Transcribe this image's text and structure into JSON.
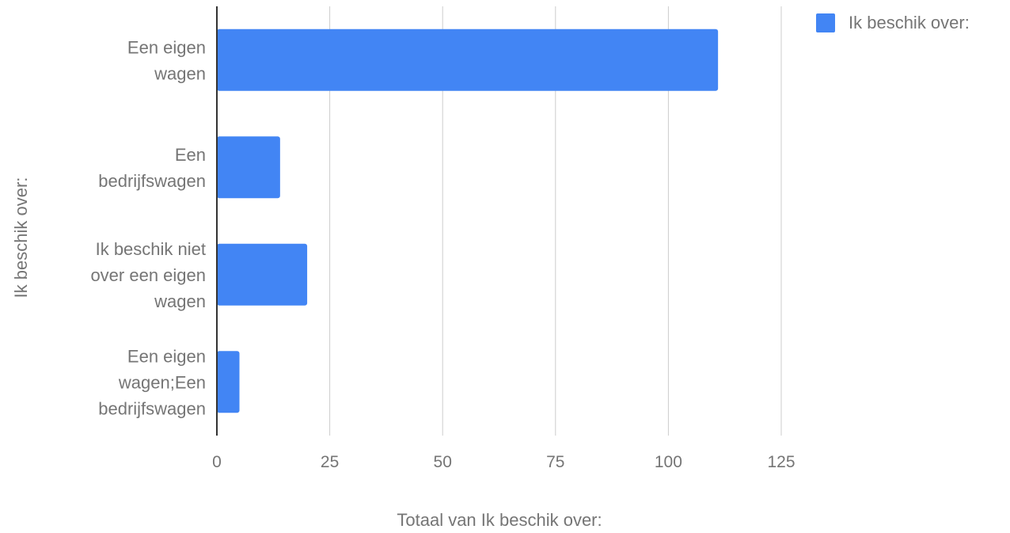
{
  "chart_data": {
    "type": "bar",
    "orientation": "horizontal",
    "categories": [
      [
        "Een eigen",
        "wagen"
      ],
      [
        "Een",
        "bedrijfswagen"
      ],
      [
        "Ik beschik niet",
        "over een eigen",
        "wagen"
      ],
      [
        "Een eigen",
        "wagen;Een",
        "bedrijfswagen"
      ]
    ],
    "series": [
      {
        "name": "Ik beschik over:",
        "values": [
          111,
          14,
          20,
          5
        ],
        "color": "#4285f4"
      }
    ],
    "xlabel": "Totaal van Ik beschik over:",
    "ylabel": "Ik beschik over:",
    "xlim": [
      0,
      125
    ],
    "xticks": [
      "0",
      "25",
      "50",
      "75",
      "100",
      "125"
    ],
    "grid": true,
    "legend_position": "top-right"
  }
}
